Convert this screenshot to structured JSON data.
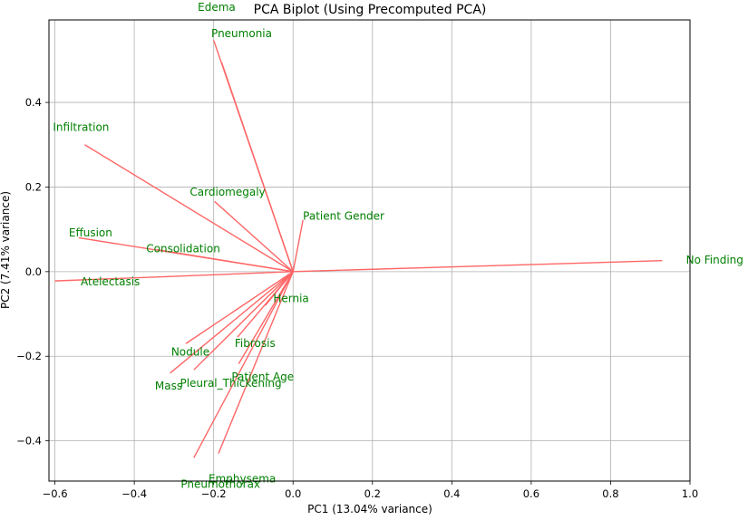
{
  "chart_data": {
    "type": "scatter",
    "title": "PCA Biplot (Using Precomputed PCA)",
    "xlabel": "PC1 (13.04% variance)",
    "ylabel": "PC2 (7.41% variance)",
    "xlim": [
      -0.615,
      1.0
    ],
    "ylim": [
      -0.495,
      0.595
    ],
    "xticks": [
      -0.6,
      -0.4,
      -0.2,
      0.0,
      0.2,
      0.4,
      0.6,
      0.8,
      1.0
    ],
    "yticks": [
      -0.4,
      -0.2,
      0.0,
      0.2,
      0.4
    ],
    "grid": true,
    "arrow_color": "#ff6666",
    "label_color": "#008000",
    "loadings": [
      {
        "name": "Edema",
        "x": -0.18,
        "y": 0.495
      },
      {
        "name": "Pneumonia",
        "x": -0.2,
        "y": 0.547
      },
      {
        "name": "Infiltration",
        "x": -0.525,
        "y": 0.3
      },
      {
        "name": "Cardiomegaly",
        "x": -0.198,
        "y": 0.166
      },
      {
        "name": "Patient Gender",
        "x": 0.025,
        "y": 0.122
      },
      {
        "name": "Effusion",
        "x": -0.54,
        "y": 0.08
      },
      {
        "name": "Consolidation",
        "x": -0.343,
        "y": 0.052
      },
      {
        "name": "Atelectasis",
        "x": -0.6,
        "y": -0.022
      },
      {
        "name": "No Finding",
        "x": 0.93,
        "y": 0.026
      },
      {
        "name": "Hernia",
        "x": -0.07,
        "y": -0.08
      },
      {
        "name": "Fibrosis",
        "x": -0.14,
        "y": -0.155
      },
      {
        "name": "Nodule",
        "x": -0.27,
        "y": -0.17
      },
      {
        "name": "Patient Age",
        "x": -0.137,
        "y": -0.218
      },
      {
        "name": "Pleural_Thickening",
        "x": -0.25,
        "y": -0.232
      },
      {
        "name": "Mass",
        "x": -0.31,
        "y": -0.24
      },
      {
        "name": "Emphysema",
        "x": -0.188,
        "y": -0.43
      },
      {
        "name": "Pneumothorax",
        "x": -0.25,
        "y": -0.44
      }
    ],
    "labels": [
      {
        "text": "Edema",
        "x": -0.24,
        "y": 0.625
      },
      {
        "text": "Pneumonia",
        "x": -0.206,
        "y": 0.563
      },
      {
        "text": "Infiltration",
        "x": -0.605,
        "y": 0.341
      },
      {
        "text": "Cardiomegaly",
        "x": -0.26,
        "y": 0.188
      },
      {
        "text": "Patient Gender",
        "x": 0.025,
        "y": 0.131
      },
      {
        "text": "Effusion",
        "x": -0.565,
        "y": 0.092
      },
      {
        "text": "Consolidation",
        "x": -0.37,
        "y": 0.054
      },
      {
        "text": "Atelectasis",
        "x": -0.535,
        "y": -0.024
      },
      {
        "text": "No Finding",
        "x": 0.99,
        "y": 0.028
      },
      {
        "text": "Hernia",
        "x": -0.05,
        "y": -0.063
      },
      {
        "text": "Fibrosis",
        "x": -0.147,
        "y": -0.17
      },
      {
        "text": "Nodule",
        "x": -0.307,
        "y": -0.19
      },
      {
        "text": "Patient Age",
        "x": -0.155,
        "y": -0.249
      },
      {
        "text": "Pleural_Thickening",
        "x": -0.285,
        "y": -0.264
      },
      {
        "text": "Mass",
        "x": -0.348,
        "y": -0.27
      },
      {
        "text": "Emphysema",
        "x": -0.213,
        "y": -0.49
      },
      {
        "text": "Pneumothorax",
        "x": -0.283,
        "y": -0.503
      }
    ]
  }
}
